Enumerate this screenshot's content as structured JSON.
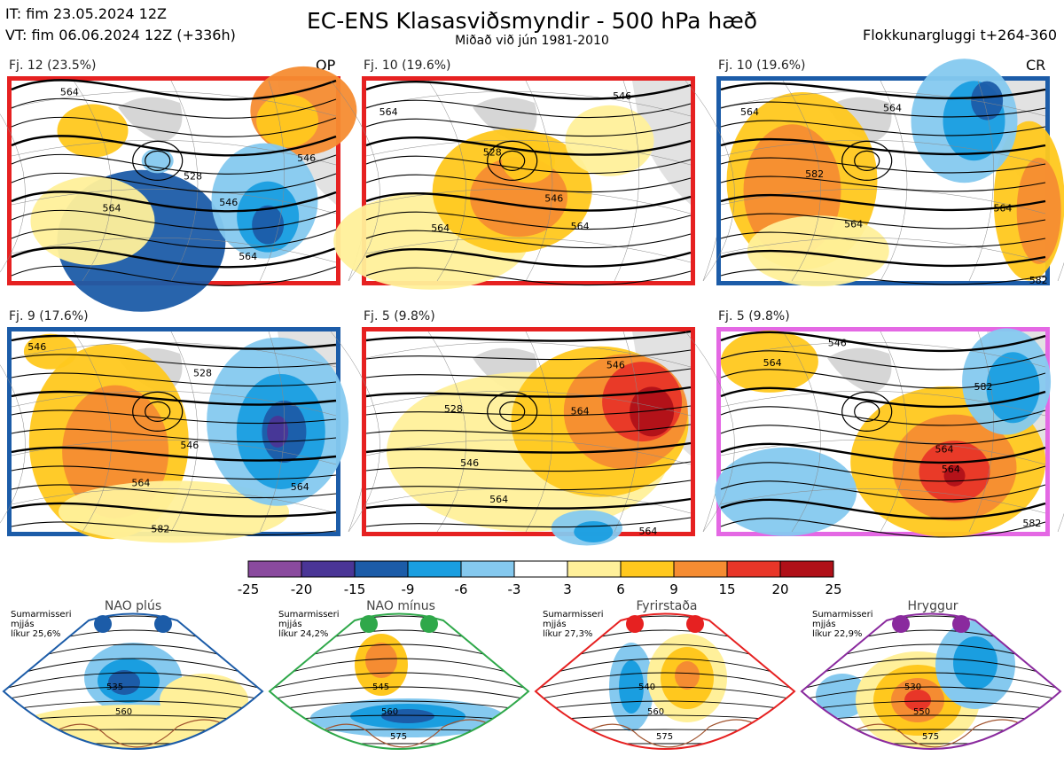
{
  "header": {
    "it": "IT: fim 23.05.2024 12Z",
    "vt": "VT: fim 06.06.2024 12Z  (+336h)",
    "title": "EC-ENS Klasasviðsmyndir - 500 hPa hæð",
    "subtitle": "Miðað við jún 1981-2010",
    "window": "Flokkunargluggi t+264-360"
  },
  "clusters": [
    {
      "label": "Fj. 12 (23.5%)",
      "tag": "OP",
      "regime_color": "#e62121",
      "contours": [
        "564",
        "546",
        "528",
        "564",
        "564",
        "546"
      ]
    },
    {
      "label": "Fj. 10 (19.6%)",
      "tag": "",
      "regime_color": "#e62121",
      "contours": [
        "564",
        "564",
        "546",
        "528",
        "546",
        "564"
      ]
    },
    {
      "label": "Fj. 10 (19.6%)",
      "tag": "CR",
      "regime_color": "#1c5ca8",
      "contours": [
        "564",
        "582",
        "564",
        "564",
        "564",
        "582"
      ]
    },
    {
      "label": "Fj. 9 (17.6%)",
      "tag": "",
      "regime_color": "#1c5ca8",
      "contours": [
        "546",
        "546",
        "528",
        "564",
        "582",
        "564"
      ]
    },
    {
      "label": "Fj. 5 (9.8%)",
      "tag": "",
      "regime_color": "#e62121",
      "contours": [
        "546",
        "528",
        "546",
        "564",
        "564",
        "564"
      ]
    },
    {
      "label": "Fj. 5 (9.8%)",
      "tag": "",
      "regime_color": "#e468e4",
      "contours": [
        "564",
        "546",
        "564",
        "582",
        "564",
        "582"
      ]
    }
  ],
  "colorbar": {
    "ticks": [
      "-25",
      "-20",
      "-15",
      "-9",
      "-6",
      "-3",
      "3",
      "6",
      "9",
      "15",
      "20",
      "25"
    ],
    "colors": [
      "#8a4a9e",
      "#4a3596",
      "#1c5ca8",
      "#1a9ee0",
      "#85c9ef",
      "#ffffff",
      "#fff09a",
      "#ffc81e",
      "#f58c32",
      "#e83628",
      "#b01018"
    ]
  },
  "regimes": [
    {
      "title": "NAO plús",
      "note": "Sumarmisseri\nmjjás\nlíkur 25,6%",
      "color": "#1c5ca8",
      "contours": [
        "535",
        "560"
      ]
    },
    {
      "title": "NAO mínus",
      "note": "Sumarmisseri\nmjjás\nlíkur 24,2%",
      "color": "#2fa84a",
      "contours": [
        "545",
        "560",
        "575"
      ]
    },
    {
      "title": "Fyrirstaða",
      "note": "Sumarmisseri\nmjjás\nlíkur 27,3%",
      "color": "#e62121",
      "contours": [
        "540",
        "560",
        "575"
      ]
    },
    {
      "title": "Hryggur",
      "note": "Sumarmisseri\nmjjás\nlíkur 22,9%",
      "color": "#8a2a9e",
      "contours": [
        "530",
        "550",
        "575"
      ]
    }
  ]
}
